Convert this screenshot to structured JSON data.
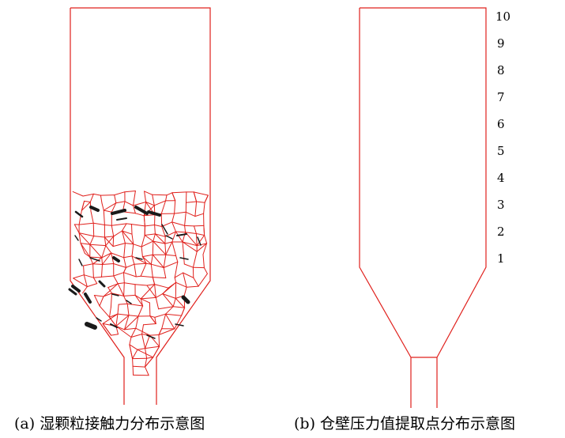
{
  "panel_a": {
    "caption": "(a) 湿颗粒接触力分布示意图"
  },
  "panel_b": {
    "caption": "(b) 仓壁压力值提取点分布示意图",
    "levels": [
      "10",
      "9",
      "8",
      "7",
      "6",
      "5",
      "4",
      "3",
      "2",
      "1"
    ]
  },
  "colors": {
    "wall": "#e0201c",
    "force_chain": "#e0201c",
    "strong_contact": "#1a1a1a"
  }
}
